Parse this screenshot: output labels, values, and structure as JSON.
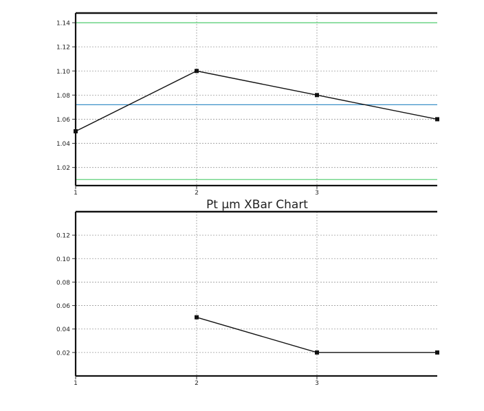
{
  "chart_data": [
    {
      "type": "line",
      "title": "Pt µm  XBar Chart",
      "x": [
        1,
        2,
        3,
        4
      ],
      "x_tick_labels": [
        "1",
        "2",
        "3"
      ],
      "y_tick_labels": [
        "1.02",
        "1.04",
        "1.06",
        "1.08",
        "1.10",
        "1.12",
        "1.14"
      ],
      "ylim": [
        1.005,
        1.148
      ],
      "series": [
        {
          "values": [
            1.05,
            1.1,
            1.08,
            1.06
          ]
        }
      ],
      "control_lines": [
        {
          "role": "upper-limit",
          "value": 1.14,
          "color": "#5ecf7a"
        },
        {
          "role": "center",
          "value": 1.072,
          "color": "#3a8fc8"
        },
        {
          "role": "lower-limit",
          "value": 1.01,
          "color": "#5ecf7a"
        }
      ],
      "grid": true
    },
    {
      "type": "line",
      "x": [
        2,
        3,
        4
      ],
      "x_tick_labels": [
        "1",
        "2",
        "3"
      ],
      "y_tick_labels": [
        "0.02",
        "0.04",
        "0.06",
        "0.08",
        "0.10",
        "0.12"
      ],
      "ylim": [
        0.0,
        0.14
      ],
      "series": [
        {
          "values": [
            0.05,
            0.02,
            0.02
          ]
        }
      ],
      "grid": true
    }
  ]
}
